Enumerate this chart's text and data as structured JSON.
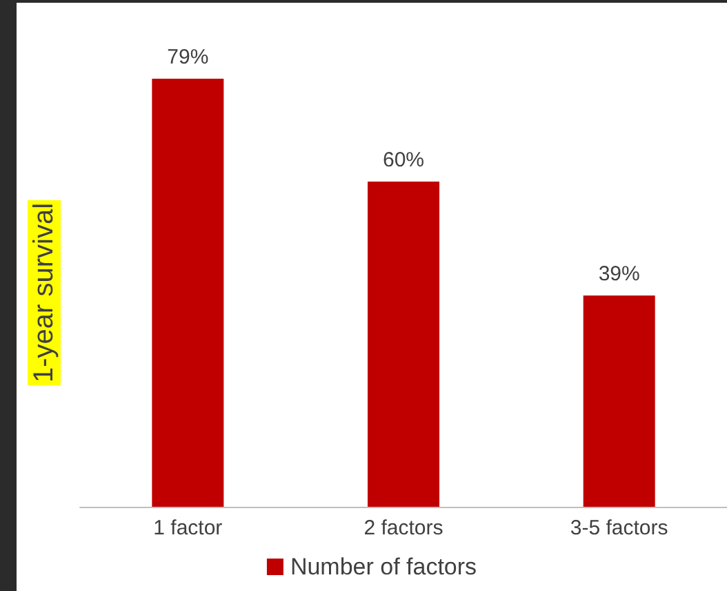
{
  "chart_data": {
    "type": "bar",
    "ylabel": "1-year survival",
    "categories": [
      "1 factor",
      "2 factors",
      "3-5 factors"
    ],
    "series": [
      {
        "name": "Number of factors",
        "color": "#c00000",
        "values": [
          79,
          60,
          39
        ],
        "value_labels": [
          "79%",
          "60%",
          "39%"
        ]
      }
    ],
    "legend": "bottom",
    "grid": false,
    "tick_labels": "x"
  }
}
